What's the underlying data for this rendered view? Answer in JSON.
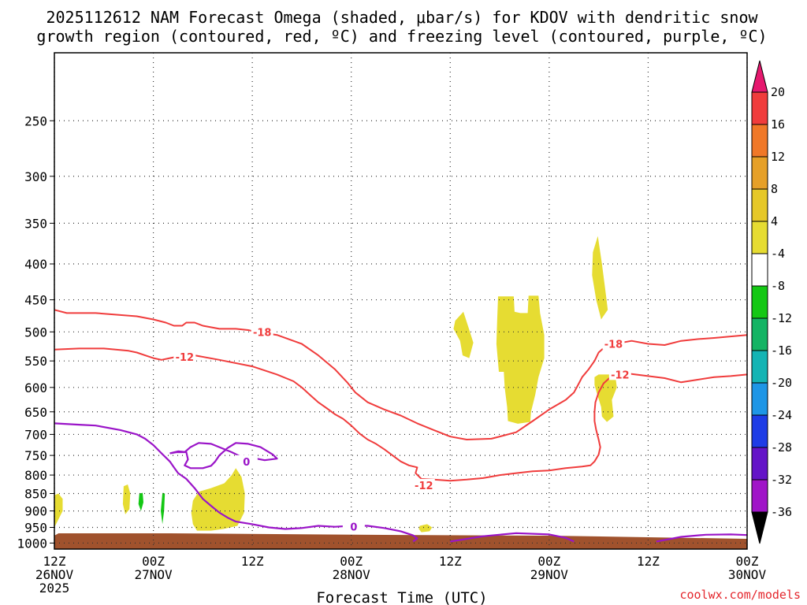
{
  "chart_data": {
    "type": "contour",
    "title_lines": [
      "2025112612 NAM Forecast Omega (shaded, μbar/s) for KDOV with dendritic snow",
      "growth region (contoured, red, ºC) and freezing level (contoured, purple, ºC)"
    ],
    "xlabel": "Forecast Time (UTC)",
    "credit": "coolwx.com/models",
    "x_ticks": [
      {
        "h": 0,
        "lines": [
          "12Z",
          "26NOV",
          "2025"
        ]
      },
      {
        "h": 12,
        "lines": [
          "00Z",
          "27NOV"
        ]
      },
      {
        "h": 24,
        "lines": [
          "12Z"
        ]
      },
      {
        "h": 36,
        "lines": [
          "00Z",
          "28NOV"
        ]
      },
      {
        "h": 48,
        "lines": [
          "12Z"
        ]
      },
      {
        "h": 60,
        "lines": [
          "00Z",
          "29NOV"
        ]
      },
      {
        "h": 72,
        "lines": [
          "12Z"
        ]
      },
      {
        "h": 84,
        "lines": [
          "00Z",
          "30NOV"
        ]
      }
    ],
    "y_ticks": [
      "250",
      "300",
      "350",
      "400",
      "450",
      "500",
      "550",
      "600",
      "650",
      "700",
      "750",
      "800",
      "850",
      "900",
      "950",
      "1000"
    ],
    "y_tick_values": [
      250,
      300,
      350,
      400,
      450,
      500,
      550,
      600,
      650,
      700,
      750,
      800,
      850,
      900,
      950,
      1000
    ],
    "x_range_hours": [
      0,
      84
    ],
    "y_range_mb": [
      200,
      1020
    ],
    "y_scale": "log",
    "grid": true,
    "colorbar": {
      "labels": [
        "20",
        "16",
        "12",
        "8",
        "4",
        "-4",
        "-8",
        "-12",
        "-16",
        "-20",
        "-24",
        "-28",
        "-32",
        "-36"
      ],
      "colors": [
        "#e6186e",
        "#f03c3c",
        "#f07828",
        "#e6a028",
        "#e6c828",
        "#e6dc32",
        "#ffffff",
        "#14c814",
        "#14b464",
        "#14b4b4",
        "#1e96e6",
        "#1e3ce6",
        "#6414c8",
        "#a014c8",
        "#a0a0a0",
        "#000000"
      ],
      "bounds": [
        20,
        16,
        12,
        8,
        4,
        -4,
        -8,
        -12,
        -16,
        -20,
        -24,
        -28,
        -32,
        -36
      ]
    },
    "contour_labels": {
      "dgz_top": "-18",
      "dgz_bottom": "-12",
      "freezing": "0"
    },
    "contours": {
      "red": [
        [
          [
            0,
            465
          ],
          [
            1.5,
            470
          ],
          [
            5,
            470
          ],
          [
            10,
            475
          ],
          [
            12,
            480
          ],
          [
            13.5,
            485
          ],
          [
            14.5,
            490
          ],
          [
            15.5,
            490
          ],
          [
            16,
            485
          ],
          [
            17,
            485
          ],
          [
            18,
            490
          ],
          [
            20,
            495
          ],
          [
            22,
            495
          ],
          [
            23.5,
            497
          ],
          [
            24.5,
            500
          ],
          [
            27,
            505
          ],
          [
            30,
            520
          ],
          [
            32,
            540
          ],
          [
            34,
            565
          ],
          [
            35.5,
            590
          ],
          [
            36.5,
            610
          ],
          [
            38,
            630
          ],
          [
            40,
            645
          ],
          [
            42,
            658
          ],
          [
            44,
            675
          ],
          [
            46,
            690
          ],
          [
            48,
            705
          ],
          [
            50,
            712
          ],
          [
            53,
            710
          ],
          [
            56,
            695
          ],
          [
            58,
            670
          ],
          [
            60,
            645
          ],
          [
            62,
            625
          ],
          [
            63,
            610
          ],
          [
            63.5,
            595
          ],
          [
            64,
            580
          ],
          [
            64.8,
            565
          ],
          [
            65.5,
            550
          ],
          [
            66,
            535
          ],
          [
            67,
            522
          ],
          [
            68,
            520
          ],
          [
            70,
            515
          ],
          [
            72,
            520
          ],
          [
            74,
            522
          ],
          [
            76,
            515
          ],
          [
            78,
            512
          ],
          [
            80,
            510
          ],
          [
            84,
            505
          ]
        ],
        [
          [
            0,
            530
          ],
          [
            3,
            528
          ],
          [
            6,
            528
          ],
          [
            9,
            532
          ],
          [
            10,
            535
          ],
          [
            11,
            540
          ],
          [
            12,
            545
          ],
          [
            13,
            548
          ],
          [
            14,
            545
          ],
          [
            15,
            542
          ],
          [
            17,
            540
          ],
          [
            20,
            548
          ],
          [
            24,
            560
          ],
          [
            27,
            575
          ],
          [
            29,
            588
          ],
          [
            30,
            600
          ],
          [
            31,
            615
          ],
          [
            32,
            630
          ],
          [
            33,
            642
          ],
          [
            34,
            655
          ],
          [
            35,
            665
          ],
          [
            36,
            680
          ],
          [
            37,
            698
          ],
          [
            38,
            712
          ],
          [
            39,
            722
          ],
          [
            40,
            735
          ],
          [
            41,
            750
          ],
          [
            42,
            765
          ],
          [
            43,
            775
          ],
          [
            44,
            780
          ],
          [
            43.8,
            795
          ],
          [
            44.5,
            810
          ],
          [
            46,
            812
          ],
          [
            48,
            815
          ],
          [
            50,
            812
          ],
          [
            52,
            808
          ],
          [
            54,
            800
          ],
          [
            56,
            795
          ],
          [
            58,
            790
          ],
          [
            60,
            788
          ],
          [
            62,
            782
          ],
          [
            64,
            778
          ],
          [
            65,
            775
          ],
          [
            65.5,
            765
          ],
          [
            66,
            748
          ],
          [
            66.2,
            730
          ],
          [
            66,
            712
          ],
          [
            65.7,
            690
          ],
          [
            65.5,
            670
          ],
          [
            65.5,
            650
          ],
          [
            65.6,
            630
          ],
          [
            66,
            610
          ],
          [
            66.6,
            592
          ],
          [
            67.3,
            582
          ],
          [
            68.2,
            575
          ],
          [
            69,
            572
          ],
          [
            70,
            574
          ],
          [
            72,
            578
          ],
          [
            74,
            582
          ],
          [
            76,
            590
          ],
          [
            78,
            585
          ],
          [
            80,
            580
          ],
          [
            82,
            578
          ],
          [
            84,
            575
          ]
        ]
      ],
      "purple": [
        [
          [
            0,
            675
          ],
          [
            3,
            678
          ],
          [
            5,
            680
          ],
          [
            8,
            690
          ],
          [
            10,
            700
          ],
          [
            11,
            710
          ],
          [
            12,
            725
          ],
          [
            13,
            745
          ],
          [
            14,
            765
          ],
          [
            14.5,
            780
          ],
          [
            15,
            795
          ],
          [
            16,
            810
          ],
          [
            17,
            835
          ],
          [
            18,
            865
          ],
          [
            19,
            885
          ],
          [
            20,
            905
          ],
          [
            21,
            920
          ],
          [
            22,
            932
          ],
          [
            24,
            940
          ],
          [
            26,
            950
          ],
          [
            28,
            955
          ],
          [
            30,
            952
          ],
          [
            32,
            945
          ],
          [
            34,
            948
          ],
          [
            36,
            945
          ],
          [
            38,
            945
          ],
          [
            40,
            952
          ],
          [
            42,
            962
          ],
          [
            43.5,
            975
          ],
          [
            44,
            985
          ],
          [
            43.5,
            995
          ]
        ],
        [
          [
            14,
            745
          ],
          [
            15,
            740
          ],
          [
            16,
            742
          ],
          [
            16.2,
            760
          ],
          [
            15.8,
            775
          ],
          [
            16.5,
            782
          ],
          [
            18,
            782
          ],
          [
            19,
            776
          ],
          [
            19.5,
            765
          ],
          [
            20,
            750
          ],
          [
            21,
            732
          ],
          [
            22,
            720
          ],
          [
            23.5,
            722
          ],
          [
            25,
            730
          ],
          [
            26.5,
            748
          ],
          [
            27,
            758
          ],
          [
            25.5,
            762
          ],
          [
            24.5,
            758
          ],
          [
            23.8,
            768
          ],
          [
            23,
            772
          ],
          [
            22.3,
            762
          ],
          [
            22.5,
            752
          ],
          [
            21.5,
            742
          ],
          [
            20,
            730
          ],
          [
            19,
            722
          ],
          [
            17.5,
            720
          ],
          [
            16.5,
            730
          ],
          [
            15.8,
            742
          ],
          [
            14.8,
            742
          ],
          [
            14,
            745
          ]
        ],
        [
          [
            48,
            995
          ],
          [
            52,
            978
          ],
          [
            56,
            968
          ],
          [
            60,
            972
          ],
          [
            62,
            983
          ],
          [
            63,
            995
          ]
        ],
        [
          [
            73,
            995
          ],
          [
            76,
            980
          ],
          [
            79,
            973
          ],
          [
            82,
            972
          ],
          [
            84,
            974
          ]
        ]
      ]
    },
    "shaded": [
      {
        "color": "#e6dc32",
        "polygon": [
          [
            0,
            855
          ],
          [
            0.5,
            850
          ],
          [
            1,
            865
          ],
          [
            1,
            900
          ],
          [
            0.4,
            930
          ],
          [
            0,
            950
          ]
        ]
      },
      {
        "color": "#e6dc32",
        "polygon": [
          [
            8.4,
            830
          ],
          [
            8.9,
            825
          ],
          [
            9.2,
            850
          ],
          [
            9.1,
            895
          ],
          [
            8.6,
            910
          ],
          [
            8.3,
            880
          ]
        ]
      },
      {
        "color": "#14c814",
        "polygon": [
          [
            10.3,
            850
          ],
          [
            10.7,
            848
          ],
          [
            10.8,
            875
          ],
          [
            10.5,
            900
          ],
          [
            10.2,
            880
          ]
        ]
      },
      {
        "color": "#14c814",
        "polygon": [
          [
            13.1,
            848
          ],
          [
            13.4,
            850
          ],
          [
            13.3,
            900
          ],
          [
            13.1,
            940
          ],
          [
            12.9,
            900
          ]
        ]
      },
      {
        "color": "#e6dc32",
        "polygon": [
          [
            16.8,
            870
          ],
          [
            17.5,
            845
          ],
          [
            19,
            835
          ],
          [
            20.6,
            822
          ],
          [
            21.5,
            800
          ],
          [
            22,
            782
          ],
          [
            22.7,
            805
          ],
          [
            23.1,
            850
          ],
          [
            23,
            905
          ],
          [
            22.2,
            945
          ],
          [
            20.5,
            955
          ],
          [
            19,
            960
          ],
          [
            17.3,
            960
          ],
          [
            16.8,
            940
          ],
          [
            16.6,
            905
          ]
        ]
      },
      {
        "color": "#e6dc32",
        "polygon": [
          [
            44.3,
            945
          ],
          [
            45.2,
            940
          ],
          [
            45.8,
            950
          ],
          [
            45.5,
            962
          ],
          [
            44.5,
            965
          ],
          [
            44.2,
            955
          ]
        ]
      },
      {
        "color": "#e6dc32",
        "polygon": [
          [
            48.6,
            482
          ],
          [
            49.6,
            468
          ],
          [
            50.2,
            492
          ],
          [
            50.8,
            518
          ],
          [
            50.3,
            545
          ],
          [
            49.5,
            540
          ],
          [
            49.2,
            515
          ],
          [
            48.4,
            495
          ]
        ]
      },
      {
        "color": "#e6dc32",
        "polygon": [
          [
            53.8,
            445
          ],
          [
            55.7,
            445
          ],
          [
            55.8,
            468
          ],
          [
            56.5,
            470
          ],
          [
            57.4,
            470
          ],
          [
            57.5,
            444
          ],
          [
            58.7,
            444
          ],
          [
            58.9,
            470
          ],
          [
            59.4,
            505
          ],
          [
            59.4,
            545
          ],
          [
            58.7,
            580
          ],
          [
            58.3,
            615
          ],
          [
            57.8,
            650
          ],
          [
            57.7,
            672
          ],
          [
            56.2,
            676
          ],
          [
            55,
            670
          ],
          [
            54.9,
            640
          ],
          [
            54.6,
            600
          ],
          [
            54.5,
            570
          ],
          [
            53.9,
            570
          ],
          [
            53.6,
            520
          ],
          [
            53.7,
            480
          ]
        ]
      },
      {
        "color": "#e6dc32",
        "polygon": [
          [
            65.3,
            385
          ],
          [
            65.9,
            365
          ],
          [
            66.4,
            400
          ],
          [
            66.8,
            435
          ],
          [
            67.1,
            465
          ],
          [
            66.3,
            480
          ],
          [
            65.7,
            450
          ],
          [
            65.2,
            415
          ]
        ]
      },
      {
        "color": "#e6dc32",
        "polygon": [
          [
            65.5,
            580
          ],
          [
            66,
            575
          ],
          [
            68,
            575
          ],
          [
            68.2,
            600
          ],
          [
            67.6,
            625
          ],
          [
            67.8,
            660
          ],
          [
            67,
            672
          ],
          [
            66.4,
            660
          ],
          [
            66.3,
            640
          ],
          [
            65.8,
            612
          ],
          [
            65.5,
            595
          ]
        ]
      }
    ],
    "ground": {
      "color": "#a0522d",
      "polygon_note": "surface terrain fill at bottom of plot"
    }
  }
}
